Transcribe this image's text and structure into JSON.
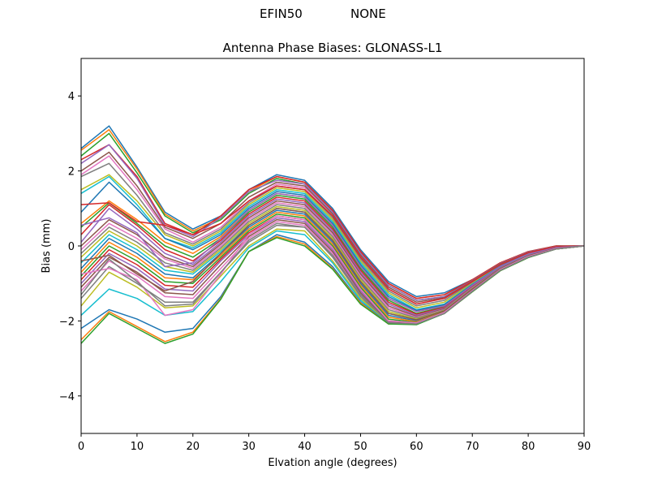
{
  "suptitle": {
    "left": "EFIN50",
    "right": "NONE"
  },
  "chart_data": {
    "type": "line",
    "title": "Antenna Phase Biases: GLONASS-L1",
    "xlabel": "Elvation angle (degrees)",
    "ylabel": "Bias (mm)",
    "xlim": [
      0,
      90
    ],
    "ylim": [
      -5,
      5
    ],
    "xticks": [
      "0",
      "10",
      "20",
      "30",
      "40",
      "50",
      "60",
      "70",
      "80",
      "90"
    ],
    "yticks": [
      "−4",
      "−2",
      "0",
      "2",
      "4"
    ],
    "grid": false,
    "legend": "none",
    "x": [
      0,
      5,
      10,
      15,
      20,
      25,
      30,
      35,
      40,
      45,
      50,
      55,
      60,
      65,
      70,
      75,
      80,
      85,
      90
    ],
    "series": [
      {
        "values": [
          2.6,
          3.2,
          2.1,
          0.9,
          0.45,
          0.8,
          1.5,
          1.9,
          1.75,
          1.0,
          -0.1,
          -0.95,
          -1.35,
          -1.25,
          -0.9,
          -0.45,
          -0.15,
          0.0,
          0.0
        ]
      },
      {
        "values": [
          2.55,
          3.1,
          2.05,
          0.85,
          0.4,
          0.75,
          1.45,
          1.85,
          1.7,
          0.95,
          -0.15,
          -1.0,
          -1.4,
          -1.3,
          -0.9,
          -0.45,
          -0.15,
          0.0,
          0.0
        ]
      },
      {
        "values": [
          2.4,
          3.0,
          1.95,
          0.8,
          0.35,
          0.7,
          1.4,
          1.8,
          1.65,
          0.9,
          -0.2,
          -1.05,
          -1.45,
          -1.35,
          -0.92,
          -0.47,
          -0.16,
          -0.01,
          0.0
        ]
      },
      {
        "values": [
          2.3,
          2.7,
          1.85,
          0.6,
          0.3,
          0.8,
          1.5,
          1.85,
          1.7,
          0.95,
          -0.15,
          -1.0,
          -1.4,
          -1.3,
          -0.9,
          -0.45,
          -0.15,
          0.0,
          0.0
        ]
      },
      {
        "values": [
          2.2,
          2.7,
          1.8,
          0.55,
          0.25,
          0.75,
          1.45,
          1.75,
          1.65,
          0.9,
          -0.2,
          -1.05,
          -1.45,
          -1.35,
          -0.92,
          -0.47,
          -0.16,
          -0.01,
          0.0
        ]
      },
      {
        "values": [
          2.0,
          2.5,
          1.6,
          0.5,
          0.2,
          0.6,
          1.3,
          1.7,
          1.6,
          0.85,
          -0.25,
          -1.1,
          -1.5,
          -1.38,
          -0.93,
          -0.48,
          -0.17,
          -0.01,
          0.0
        ]
      },
      {
        "values": [
          1.9,
          2.4,
          1.5,
          0.45,
          0.1,
          0.5,
          1.2,
          1.65,
          1.55,
          0.8,
          -0.3,
          -1.15,
          -1.55,
          -1.4,
          -0.95,
          -0.5,
          -0.18,
          -0.02,
          0.0
        ]
      },
      {
        "values": [
          1.85,
          2.2,
          1.35,
          0.35,
          0.05,
          0.45,
          1.15,
          1.6,
          1.5,
          0.75,
          -0.35,
          -1.2,
          -1.6,
          -1.45,
          -0.97,
          -0.5,
          -0.18,
          -0.02,
          0.0
        ]
      },
      {
        "values": [
          1.5,
          1.9,
          1.2,
          0.3,
          0.0,
          0.4,
          1.1,
          1.55,
          1.45,
          0.7,
          -0.4,
          -1.25,
          -1.65,
          -1.5,
          -1.0,
          -0.52,
          -0.2,
          -0.03,
          0.0
        ]
      },
      {
        "values": [
          1.4,
          1.85,
          1.1,
          0.2,
          -0.05,
          0.35,
          1.05,
          1.5,
          1.4,
          0.65,
          -0.45,
          -1.3,
          -1.7,
          -1.55,
          -1.02,
          -0.53,
          -0.21,
          -0.03,
          0.0
        ]
      },
      {
        "values": [
          0.9,
          1.7,
          1.0,
          0.2,
          -0.1,
          0.3,
          1.0,
          1.45,
          1.35,
          0.6,
          -0.5,
          -1.35,
          -1.72,
          -1.57,
          -1.03,
          -0.54,
          -0.21,
          -0.03,
          0.0
        ]
      },
      {
        "values": [
          0.6,
          1.2,
          0.7,
          0.1,
          -0.2,
          0.25,
          0.95,
          1.4,
          1.3,
          0.55,
          -0.55,
          -1.4,
          -1.75,
          -1.6,
          -1.05,
          -0.55,
          -0.22,
          -0.04,
          0.0
        ]
      },
      {
        "values": [
          0.5,
          1.15,
          0.6,
          0.0,
          -0.3,
          0.2,
          0.9,
          1.35,
          1.25,
          0.5,
          -0.6,
          -1.45,
          -1.8,
          -1.62,
          -1.07,
          -0.56,
          -0.23,
          -0.04,
          0.0
        ]
      },
      {
        "values": [
          0.3,
          1.1,
          0.55,
          -0.1,
          -0.4,
          0.15,
          0.85,
          1.3,
          1.2,
          0.45,
          -0.65,
          -1.5,
          -1.82,
          -1.64,
          -1.08,
          -0.57,
          -0.23,
          -0.04,
          0.0
        ]
      },
      {
        "values": [
          0.1,
          1.0,
          0.45,
          -0.2,
          -0.5,
          0.1,
          0.8,
          1.25,
          1.15,
          0.4,
          -0.7,
          -1.55,
          -1.85,
          -1.66,
          -1.1,
          -0.58,
          -0.24,
          -0.05,
          0.0
        ]
      },
      {
        "values": [
          0.0,
          0.7,
          0.3,
          -0.3,
          -0.55,
          0.05,
          0.75,
          1.2,
          1.1,
          0.35,
          -0.75,
          -1.6,
          -1.88,
          -1.68,
          -1.11,
          -0.59,
          -0.24,
          -0.05,
          0.0
        ]
      },
      {
        "values": [
          -0.1,
          0.6,
          0.2,
          -0.35,
          -0.6,
          0.0,
          0.7,
          1.15,
          1.05,
          0.3,
          -0.8,
          -1.65,
          -1.9,
          -1.7,
          -1.12,
          -0.6,
          -0.25,
          -0.05,
          0.0
        ]
      },
      {
        "values": [
          -0.2,
          0.5,
          0.1,
          -0.45,
          -0.65,
          -0.05,
          0.65,
          1.1,
          1.0,
          0.25,
          -0.85,
          -1.7,
          -1.92,
          -1.71,
          -1.13,
          -0.6,
          -0.25,
          -0.05,
          0.0
        ]
      },
      {
        "values": [
          -0.3,
          0.4,
          0.0,
          -0.55,
          -0.7,
          -0.1,
          0.6,
          1.05,
          0.95,
          0.2,
          -0.9,
          -1.75,
          -1.95,
          -1.72,
          -1.14,
          -0.61,
          -0.26,
          -0.06,
          0.0
        ]
      },
      {
        "values": [
          -0.45,
          0.3,
          -0.1,
          -0.65,
          -0.75,
          -0.15,
          0.55,
          1.0,
          0.9,
          0.15,
          -0.95,
          -1.8,
          -1.97,
          -1.73,
          -1.15,
          -0.61,
          -0.26,
          -0.06,
          0.0
        ]
      },
      {
        "values": [
          -0.6,
          0.2,
          -0.2,
          -0.75,
          -0.85,
          -0.2,
          0.5,
          0.95,
          0.85,
          0.1,
          -1.0,
          -1.85,
          -2.0,
          -1.74,
          -1.16,
          -0.62,
          -0.27,
          -0.06,
          0.0
        ]
      },
      {
        "values": [
          -0.7,
          0.1,
          -0.3,
          -0.85,
          -0.9,
          -0.25,
          0.45,
          0.9,
          0.8,
          0.05,
          -1.05,
          -1.9,
          -2.02,
          -1.75,
          -1.17,
          -0.62,
          -0.27,
          -0.06,
          0.0
        ]
      },
      {
        "values": [
          -0.8,
          0.0,
          -0.4,
          -0.95,
          -1.0,
          -0.3,
          0.4,
          0.85,
          0.75,
          0.0,
          -1.1,
          -1.95,
          -2.04,
          -1.76,
          -1.18,
          -0.63,
          -0.28,
          -0.07,
          0.0
        ]
      },
      {
        "values": [
          -0.9,
          -0.1,
          -0.5,
          -1.05,
          -1.1,
          -0.35,
          0.35,
          0.8,
          0.7,
          -0.05,
          -1.15,
          -2.0,
          -2.05,
          -1.77,
          -1.19,
          -0.63,
          -0.28,
          -0.07,
          0.0
        ]
      },
      {
        "values": [
          -1.0,
          -0.2,
          -0.6,
          -1.15,
          -1.2,
          -0.4,
          0.3,
          0.75,
          0.65,
          -0.1,
          -1.2,
          -2.02,
          -2.06,
          -1.78,
          -1.2,
          -0.64,
          -0.29,
          -0.07,
          0.0
        ]
      },
      {
        "values": [
          -1.1,
          -0.3,
          -0.7,
          -1.25,
          -1.3,
          -0.5,
          0.25,
          0.7,
          0.6,
          -0.15,
          -1.25,
          -2.04,
          -2.07,
          -1.79,
          -1.2,
          -0.64,
          -0.29,
          -0.07,
          0.0
        ]
      },
      {
        "values": [
          -1.2,
          -0.4,
          -0.8,
          -1.35,
          -1.4,
          -0.6,
          0.2,
          0.65,
          0.55,
          -0.2,
          -1.3,
          -2.05,
          -2.08,
          -1.8,
          -1.21,
          -0.65,
          -0.3,
          -0.08,
          0.0
        ]
      },
      {
        "values": [
          -1.4,
          -0.55,
          -1.0,
          -1.5,
          -1.5,
          -0.7,
          0.1,
          0.55,
          0.5,
          -0.3,
          -1.35,
          -2.06,
          -2.08,
          -1.8,
          -1.21,
          -0.65,
          -0.3,
          -0.08,
          0.0
        ]
      },
      {
        "values": [
          -1.6,
          -0.7,
          -1.1,
          -1.65,
          -1.6,
          -0.8,
          0.0,
          0.45,
          0.4,
          -0.4,
          -1.4,
          -2.06,
          -2.08,
          -1.8,
          -1.22,
          -0.66,
          -0.3,
          -0.08,
          0.0
        ]
      },
      {
        "values": [
          -1.85,
          -1.15,
          -1.4,
          -1.85,
          -1.75,
          -0.95,
          -0.05,
          0.4,
          0.3,
          -0.45,
          -1.45,
          -2.07,
          -2.08,
          -1.8,
          -1.22,
          -0.66,
          -0.31,
          -0.08,
          0.0
        ]
      },
      {
        "values": [
          -2.2,
          -1.7,
          -1.95,
          -2.3,
          -2.2,
          -1.35,
          -0.15,
          0.3,
          0.1,
          -0.55,
          -1.5,
          -2.07,
          -2.08,
          -1.8,
          -1.22,
          -0.66,
          -0.31,
          -0.08,
          0.0
        ]
      },
      {
        "values": [
          -2.5,
          -1.75,
          -2.15,
          -2.55,
          -2.3,
          -1.4,
          -0.15,
          0.25,
          0.05,
          -0.6,
          -1.52,
          -2.08,
          -2.08,
          -1.8,
          -1.22,
          -0.66,
          -0.31,
          -0.08,
          0.0
        ]
      },
      {
        "values": [
          -2.6,
          -1.8,
          -2.2,
          -2.6,
          -2.35,
          -1.42,
          -0.15,
          0.22,
          0.0,
          -0.62,
          -1.55,
          -2.08,
          -2.1,
          -1.8,
          -1.22,
          -0.66,
          -0.31,
          -0.08,
          0.0
        ]
      },
      {
        "values": [
          1.1,
          1.15,
          0.65,
          0.55,
          0.3,
          0.6,
          1.2,
          1.6,
          1.5,
          0.8,
          -0.3,
          -1.15,
          -1.55,
          -1.4,
          -0.95,
          -0.5,
          -0.18,
          -0.02,
          0.0
        ]
      },
      {
        "values": [
          0.55,
          0.75,
          0.35,
          -0.55,
          -0.45,
          0.2,
          0.95,
          1.4,
          1.3,
          0.55,
          -0.55,
          -1.4,
          -1.75,
          -1.6,
          -1.05,
          -0.55,
          -0.22,
          -0.04,
          0.0
        ]
      },
      {
        "values": [
          -0.4,
          -0.25,
          -0.75,
          -1.2,
          -0.95,
          -0.2,
          0.55,
          1.0,
          0.9,
          0.15,
          -0.95,
          -1.8,
          -1.97,
          -1.73,
          -1.15,
          -0.61,
          -0.26,
          -0.06,
          0.0
        ]
      },
      {
        "values": [
          -0.75,
          -0.6,
          -0.9,
          -1.85,
          -1.7,
          -0.75,
          0.3,
          0.8,
          0.7,
          -0.05,
          -1.15,
          -2.0,
          -2.05,
          -1.77,
          -1.19,
          -0.63,
          -0.28,
          -0.07,
          0.0
        ]
      },
      {
        "values": [
          -1.3,
          -0.35,
          -0.95,
          -1.6,
          -1.55,
          -0.7,
          0.15,
          0.6,
          0.5,
          -0.25,
          -1.3,
          -2.05,
          -2.08,
          -1.8,
          -1.21,
          -0.65,
          -0.3,
          -0.08,
          0.0
        ]
      }
    ]
  }
}
